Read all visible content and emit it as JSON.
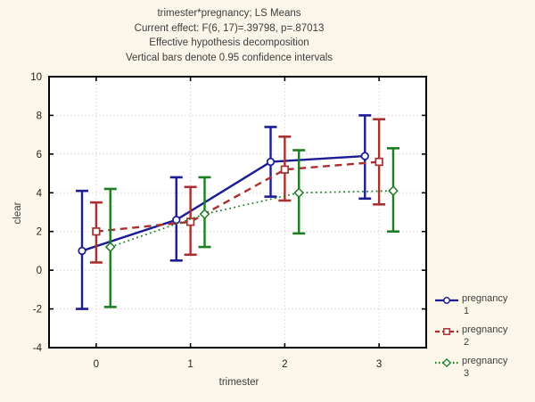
{
  "title": {
    "line1": "trimester*pregnancy; LS Means",
    "line2": "Current effect: F(6, 17)=.39798, p=.87013",
    "line3": "Effective hypothesis decomposition",
    "line4": "Vertical bars denote 0.95 confidence intervals"
  },
  "chart_data": {
    "type": "line",
    "title": "trimester*pregnancy; LS Means",
    "xlabel": "trimester",
    "ylabel": "clear",
    "x": [
      0,
      1,
      2,
      3
    ],
    "xticks": [
      0,
      1,
      2,
      3
    ],
    "yticks": [
      -4,
      -2,
      0,
      2,
      4,
      6,
      8,
      10
    ],
    "xlim": [
      -0.5,
      3.5
    ],
    "ylim": [
      -4,
      10
    ],
    "grid": true,
    "error_bars": "0.95 confidence intervals",
    "legend_position": "bottom-right",
    "series": [
      {
        "name": "pregnancy 1",
        "label_lines": [
          "pregnancy",
          "1"
        ],
        "color": "#1c1c96",
        "line_style": "solid",
        "marker": "circle",
        "x_offset": -0.15,
        "means": [
          1.0,
          2.6,
          5.6,
          5.9
        ],
        "ci_low": [
          -2.0,
          0.5,
          3.8,
          3.7
        ],
        "ci_high": [
          4.1,
          4.8,
          7.4,
          8.0
        ]
      },
      {
        "name": "pregnancy 2",
        "label_lines": [
          "pregnancy",
          "2"
        ],
        "color": "#a93030",
        "line_style": "dashed",
        "marker": "square",
        "x_offset": 0,
        "means": [
          2.0,
          2.5,
          5.2,
          5.6
        ],
        "ci_low": [
          0.4,
          0.8,
          3.6,
          3.4
        ],
        "ci_high": [
          3.5,
          4.3,
          6.9,
          7.8
        ]
      },
      {
        "name": "pregnancy 3",
        "label_lines": [
          "pregnancy",
          "3"
        ],
        "color": "#1e7d22",
        "line_style": "dotted",
        "marker": "diamond",
        "x_offset": 0.15,
        "means": [
          1.2,
          2.9,
          4.0,
          4.1
        ],
        "ci_low": [
          -1.9,
          1.2,
          1.9,
          2.0
        ],
        "ci_high": [
          4.2,
          4.8,
          6.2,
          6.3
        ]
      }
    ]
  },
  "colors": {
    "background": "#faf6e9",
    "plot_bg": "#ffffff",
    "border": "#000000",
    "grid": "#d4d4d4",
    "tick_text": "#1f1f1f",
    "text": "#3d3d3d"
  }
}
